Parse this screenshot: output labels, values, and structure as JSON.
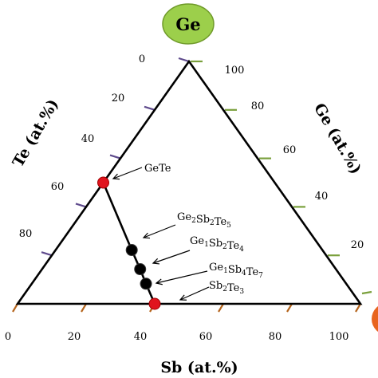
{
  "corner_badges": {
    "top": {
      "label": "Ge",
      "fill": "#9ccf4b",
      "stroke": "#6f9a2a"
    },
    "right": {
      "fill": "#e8641e"
    }
  },
  "axes": {
    "sb": {
      "title": "Sb (at.%)",
      "ticks": [
        "0",
        "20",
        "40",
        "60",
        "80",
        "100"
      ],
      "tick_color": "#b5651d"
    },
    "te": {
      "title": "Te (at.%)",
      "ticks": [
        "0",
        "20",
        "40",
        "60",
        "80"
      ],
      "tick_color": "#5e4a8c"
    },
    "ge": {
      "title": "Ge (at.%)",
      "ticks": [
        "100",
        "80",
        "60",
        "40",
        "20"
      ],
      "tick_color": "#7aa03c"
    }
  },
  "phases": [
    {
      "id": "GeTe",
      "parts": [
        [
          "Ge",
          ""
        ],
        [
          "Te",
          ""
        ]
      ],
      "sb": 0,
      "ge": 50,
      "marker": "#e0141e"
    },
    {
      "id": "Ge2Sb2Te5",
      "parts": [
        [
          "Ge",
          "2"
        ],
        [
          "Sb",
          "2"
        ],
        [
          "Te",
          "5"
        ]
      ],
      "sb": 22.2,
      "ge": 22.2,
      "marker": "#000000"
    },
    {
      "id": "Ge1Sb2Te4",
      "parts": [
        [
          "Ge",
          "1"
        ],
        [
          "Sb",
          "2"
        ],
        [
          "Te",
          "4"
        ]
      ],
      "sb": 28.6,
      "ge": 14.3,
      "marker": "#000000"
    },
    {
      "id": "Ge1Sb4Te7",
      "parts": [
        [
          "Ge",
          "1"
        ],
        [
          "Sb",
          "4"
        ],
        [
          "Te",
          "7"
        ]
      ],
      "sb": 33.3,
      "ge": 8.3,
      "marker": "#000000"
    },
    {
      "id": "Sb2Te3",
      "parts": [
        [
          "Sb",
          "2"
        ],
        [
          "Te",
          "3"
        ]
      ],
      "sb": 40,
      "ge": 0,
      "marker": "#e0141e"
    }
  ]
}
